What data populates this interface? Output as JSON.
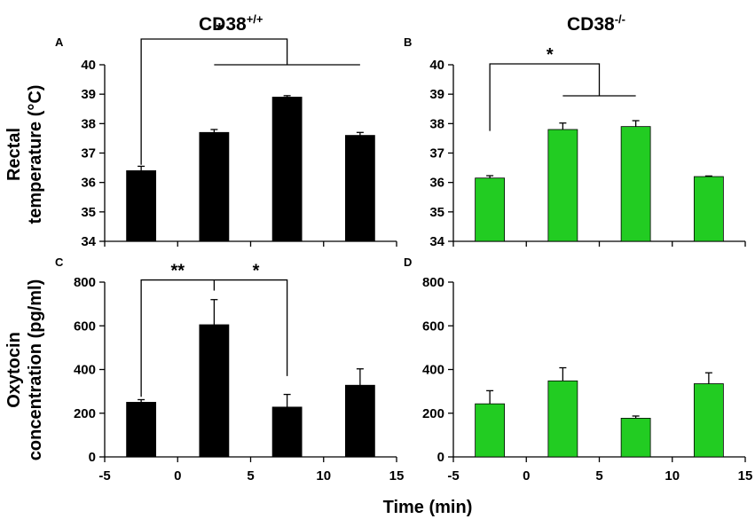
{
  "figure": {
    "col_titles": [
      {
        "base": "CD38",
        "sup": "+/+"
      },
      {
        "base": "CD38",
        "sup": "-/-"
      }
    ],
    "row_labels": [
      [
        "Rectal",
        "temperature (°C)"
      ],
      [
        "Oxytocin",
        "concentration (pg/ml)"
      ]
    ],
    "xlabel": "Time (min)",
    "colors": {
      "black_bars": "#000000",
      "green_bars": "#22cc22"
    }
  },
  "chart_data": [
    {
      "panel": "A",
      "type": "bar",
      "group": "CD38+/+",
      "x": [
        -2.5,
        2.5,
        7.5,
        12.5
      ],
      "values": [
        36.4,
        37.7,
        38.9,
        37.6
      ],
      "errors": [
        0.15,
        0.1,
        0.05,
        0.1
      ],
      "ylim": [
        34,
        40
      ],
      "yticks": [
        34,
        35,
        36,
        37,
        38,
        39,
        40
      ],
      "xlim": [
        -5,
        15
      ],
      "xticks": [
        -5,
        0,
        5,
        10,
        15
      ],
      "show_xtick_labels": false,
      "ylabel": "Rectal temperature (°C)",
      "annotations": [
        {
          "label": "*",
          "from_x": -2.5,
          "to_x": 7.5,
          "to_span": [
            2.5,
            12.5
          ],
          "y": 41.0,
          "left_drop_to": 36.6,
          "right_drop_to": 40.0
        }
      ]
    },
    {
      "panel": "B",
      "type": "bar",
      "group": "CD38-/-",
      "x": [
        -2.5,
        2.5,
        7.5,
        12.5
      ],
      "values": [
        36.15,
        37.8,
        37.9,
        36.2
      ],
      "errors": [
        0.08,
        0.22,
        0.2,
        0.02
      ],
      "ylim": [
        34,
        40
      ],
      "yticks": [
        34,
        35,
        36,
        37,
        38,
        39,
        40
      ],
      "xlim": [
        -5,
        15
      ],
      "xticks": [
        -5,
        0,
        5,
        10,
        15
      ],
      "show_xtick_labels": false,
      "annotations": [
        {
          "label": "*",
          "from_x": -2.5,
          "to_x": 5.0,
          "to_span": [
            2.5,
            7.5
          ],
          "y": 40.0,
          "left_drop_to": 37.75,
          "right_drop_to": 39.0
        }
      ]
    },
    {
      "panel": "C",
      "type": "bar",
      "group": "CD38+/+",
      "x": [
        -2.5,
        2.5,
        7.5,
        12.5
      ],
      "values": [
        250,
        605,
        228,
        328
      ],
      "errors": [
        12,
        115,
        58,
        75
      ],
      "ylim": [
        0,
        800
      ],
      "yticks": [
        0,
        200,
        400,
        600,
        800
      ],
      "xlim": [
        -5,
        15
      ],
      "xticks": [
        -5,
        0,
        5,
        10,
        15
      ],
      "show_xtick_labels": true,
      "ylabel": "Oxytocin concentration (pg/ml)",
      "annotations": [
        {
          "label": "**",
          "type": "pair-bracket",
          "x1": -2.5,
          "x2": 2.5,
          "x3": 7.5,
          "y": 810,
          "drop1": 275,
          "drop2": 730,
          "drop3": 370,
          "label2": "*"
        }
      ]
    },
    {
      "panel": "D",
      "type": "bar",
      "group": "CD38-/-",
      "x": [
        -2.5,
        2.5,
        7.5,
        12.5
      ],
      "values": [
        243,
        348,
        177,
        335
      ],
      "errors": [
        60,
        60,
        10,
        50
      ],
      "ylim": [
        0,
        800
      ],
      "yticks": [
        0,
        200,
        400,
        600,
        800
      ],
      "xlim": [
        -5,
        15
      ],
      "xticks": [
        -5,
        0,
        5,
        10,
        15
      ],
      "show_xtick_labels": true
    }
  ]
}
